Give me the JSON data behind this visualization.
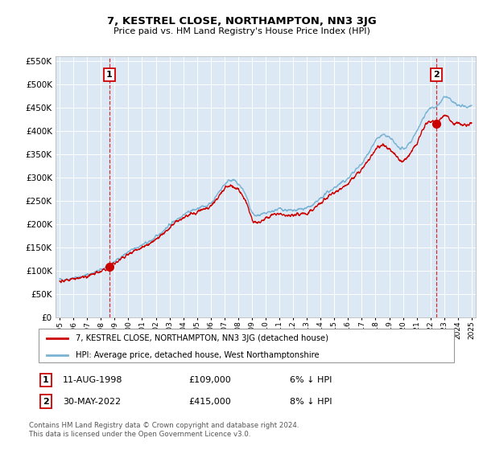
{
  "title": "7, KESTREL CLOSE, NORTHAMPTON, NN3 3JG",
  "subtitle": "Price paid vs. HM Land Registry's House Price Index (HPI)",
  "legend_line1": "7, KESTREL CLOSE, NORTHAMPTON, NN3 3JG (detached house)",
  "legend_line2": "HPI: Average price, detached house, West Northamptonshire",
  "sale1_label": "1",
  "sale1_date": "11-AUG-1998",
  "sale1_price": "£109,000",
  "sale1_hpi": "6% ↓ HPI",
  "sale2_label": "2",
  "sale2_date": "30-MAY-2022",
  "sale2_price": "£415,000",
  "sale2_hpi": "8% ↓ HPI",
  "footer": "Contains HM Land Registry data © Crown copyright and database right 2024.\nThis data is licensed under the Open Government Licence v3.0.",
  "line_color_red": "#cc0000",
  "line_color_blue": "#7ab3d4",
  "bg_color": "#dce9f5",
  "sale1_year": 1998.61,
  "sale1_value": 109000,
  "sale2_year": 2022.41,
  "sale2_value": 415000,
  "ylim_max": 560000,
  "xlim_start": 1994.7,
  "xlim_end": 2025.3
}
